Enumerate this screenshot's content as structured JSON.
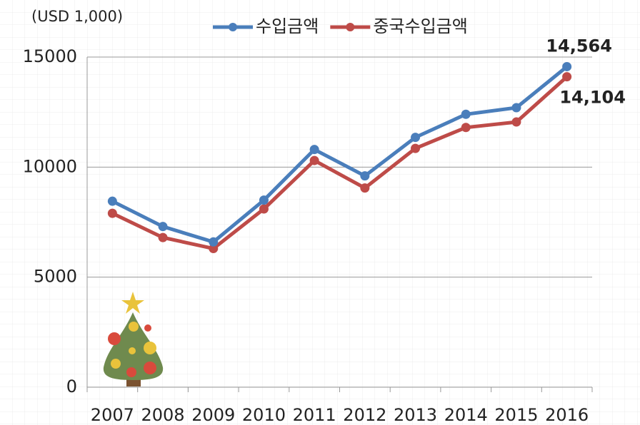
{
  "chart_data": {
    "type": "line",
    "unit_label": "(USD 1,000)",
    "categories": [
      "2007",
      "2008",
      "2009",
      "2010",
      "2011",
      "2012",
      "2013",
      "2014",
      "2015",
      "2016"
    ],
    "series": [
      {
        "name": "수입금액",
        "color": "#4a7ebb",
        "values": [
          8450,
          7300,
          6600,
          8500,
          10800,
          9600,
          11350,
          12400,
          12700,
          14564
        ],
        "value_labels": [
          null,
          null,
          null,
          null,
          null,
          null,
          null,
          null,
          null,
          "14,564"
        ]
      },
      {
        "name": "중국수입금액",
        "color": "#be4b48",
        "values": [
          7900,
          6800,
          6300,
          8100,
          10300,
          9050,
          10850,
          11800,
          12050,
          14104
        ],
        "value_labels": [
          null,
          null,
          null,
          null,
          null,
          null,
          null,
          null,
          null,
          "14,104"
        ]
      }
    ],
    "ylim": [
      0,
      15000
    ],
    "yticks": [
      0,
      5000,
      10000,
      15000
    ],
    "grid": true,
    "legend": "top"
  }
}
